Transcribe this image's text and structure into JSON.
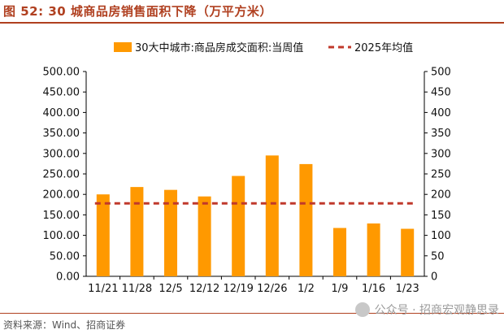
{
  "title": "图 52:  30 城商品房销售面积下降（万平方米）",
  "source": "资料来源：Wind、招商证券",
  "watermark": "公众号 · 招商宏观静思录",
  "colors": {
    "bar": "#FF9900",
    "avg_line": "#C0392B",
    "title": "#B04020",
    "axis": "#000000"
  },
  "chart_data": {
    "type": "bar",
    "categories": [
      "11/21",
      "11/28",
      "12/5",
      "12/12",
      "12/19",
      "12/26",
      "1/2",
      "1/9",
      "1/16",
      "1/23"
    ],
    "series": [
      {
        "name": "30大中城市:商品房成交面积:当周值",
        "type": "bar",
        "values": [
          200,
          218,
          211,
          195,
          245,
          295,
          274,
          118,
          129,
          116
        ]
      },
      {
        "name": "2025年均值",
        "type": "line",
        "style": "dashed",
        "values": [
          178,
          178,
          178,
          178,
          178,
          178,
          178,
          178,
          178,
          178
        ]
      }
    ],
    "ylim": [
      0,
      500
    ],
    "y_ticks_left": [
      "0.00",
      "50.00",
      "100.00",
      "150.00",
      "200.00",
      "250.00",
      "300.00",
      "350.00",
      "400.00",
      "450.00",
      "500.00"
    ],
    "y_ticks_right": [
      "0",
      "50",
      "100",
      "150",
      "200",
      "250",
      "300",
      "350",
      "400",
      "450",
      "500"
    ],
    "legend_position": "top",
    "grid": false
  }
}
